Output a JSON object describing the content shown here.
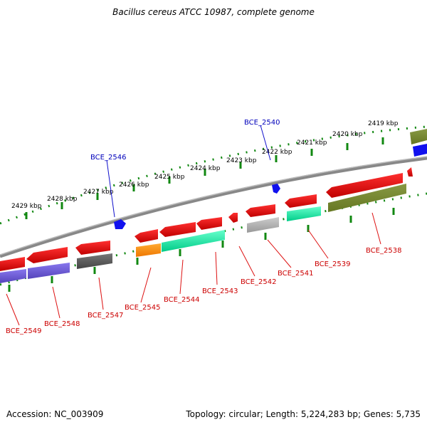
{
  "title": "Bacillus cereus ATCC 10987, complete genome",
  "accession": "Accession: NC_003909",
  "topology": "Topology: circular; Length: 5,224,283 bp; Genes: 5,735",
  "scale_labels": [
    "2429 kbp",
    "2428 kbp",
    "2427 kbp",
    "2426 kbp",
    "2425 kbp",
    "2424 kbp",
    "2423 kbp",
    "2422 kbp",
    "2421 kbp",
    "2420 kbp",
    "2419 kbp"
  ],
  "genes": [
    {
      "label": "BCE_2549",
      "color": "#d01010"
    },
    {
      "label": "BCE_2548",
      "color": "#d01010"
    },
    {
      "label": "BCE_2547",
      "color": "#d01010"
    },
    {
      "label": "BCE_2545",
      "color": "#d01010"
    },
    {
      "label": "BCE_2544",
      "color": "#d01010"
    },
    {
      "label": "BCE_2543",
      "color": "#d01010"
    },
    {
      "label": "BCE_2542",
      "color": "#d01010"
    },
    {
      "label": "BCE_2541",
      "color": "#d01010"
    },
    {
      "label": "BCE_2539",
      "color": "#d01010"
    },
    {
      "label": "BCE_2538",
      "color": "#d01010"
    },
    {
      "label": "BCE_2546",
      "color": "#1010c0"
    },
    {
      "label": "BCE_2540",
      "color": "#1010c0"
    }
  ]
}
